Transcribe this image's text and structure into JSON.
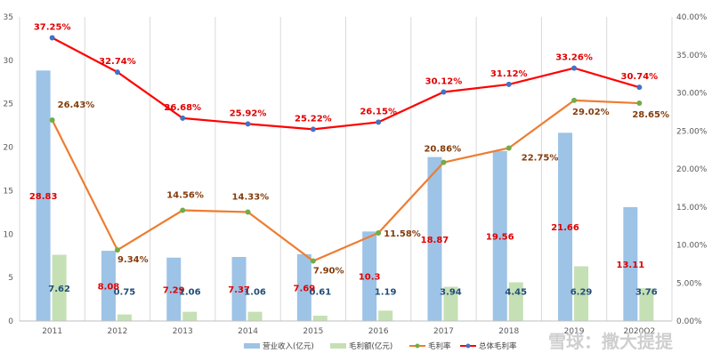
{
  "chart_data": {
    "type": "bar",
    "categories": [
      "2011",
      "2012",
      "2013",
      "2014",
      "2015",
      "2016",
      "2017",
      "2018",
      "2019",
      "2020Q2"
    ],
    "series": [
      {
        "name": "营业收入(亿元)",
        "kind": "bar",
        "axis": "left",
        "color": "#9DC3E6",
        "label_color": "#E00000",
        "values": [
          28.83,
          8.08,
          7.29,
          7.37,
          7.69,
          10.3,
          18.87,
          19.56,
          21.66,
          13.11
        ],
        "labels": [
          "28.83",
          "8.08",
          "7.29",
          "7.37",
          "7.69",
          "10.3",
          "18.87",
          "19.56",
          "21.66",
          "13.11"
        ]
      },
      {
        "name": "毛利额(亿元)",
        "kind": "bar",
        "axis": "left",
        "color": "#C5E0B4",
        "label_color": "#1F4E79",
        "values": [
          7.62,
          0.75,
          1.06,
          1.06,
          0.61,
          1.19,
          3.94,
          4.45,
          6.29,
          3.76
        ],
        "labels": [
          "7.62",
          "0.75",
          "1.06",
          "1.06",
          "0.61",
          "1.19",
          "3.94",
          "4.45",
          "6.29",
          "3.76"
        ]
      },
      {
        "name": "毛利率",
        "kind": "line",
        "axis": "right",
        "color": "#ED7D31",
        "marker": "#70AD47",
        "label_color": "#833C0B",
        "values": [
          26.43,
          9.34,
          14.56,
          14.33,
          7.9,
          11.58,
          20.86,
          22.75,
          29.02,
          28.65
        ],
        "labels": [
          "26.43%",
          "9.34%",
          "14.56%",
          "14.33%",
          "7.90%",
          "11.58%",
          "20.86%",
          "22.75%",
          "29.02%",
          "28.65%"
        ]
      },
      {
        "name": "总体毛利率",
        "kind": "line",
        "axis": "right",
        "color": "#FF0000",
        "marker": "#4472C4",
        "label_color": "#E00000",
        "values": [
          37.25,
          32.74,
          26.68,
          25.92,
          25.22,
          26.15,
          30.12,
          31.12,
          33.26,
          30.74
        ],
        "labels": [
          "37.25%",
          "32.74%",
          "26.68%",
          "25.92%",
          "25.22%",
          "26.15%",
          "30.12%",
          "31.12%",
          "33.26%",
          "30.74%"
        ]
      }
    ],
    "y_left": {
      "lim": [
        0,
        35
      ],
      "ticks": [
        "0",
        "5",
        "10",
        "15",
        "20",
        "25",
        "30",
        "35"
      ]
    },
    "y_right": {
      "lim": [
        0,
        40
      ],
      "ticks": [
        "0.00%",
        "5.00%",
        "10.00%",
        "15.00%",
        "20.00%",
        "25.00%",
        "30.00%",
        "35.00%",
        "40.00%"
      ]
    },
    "grid": "vertical",
    "legend_position": "bottom"
  },
  "watermark": "雪球：撒大提提"
}
